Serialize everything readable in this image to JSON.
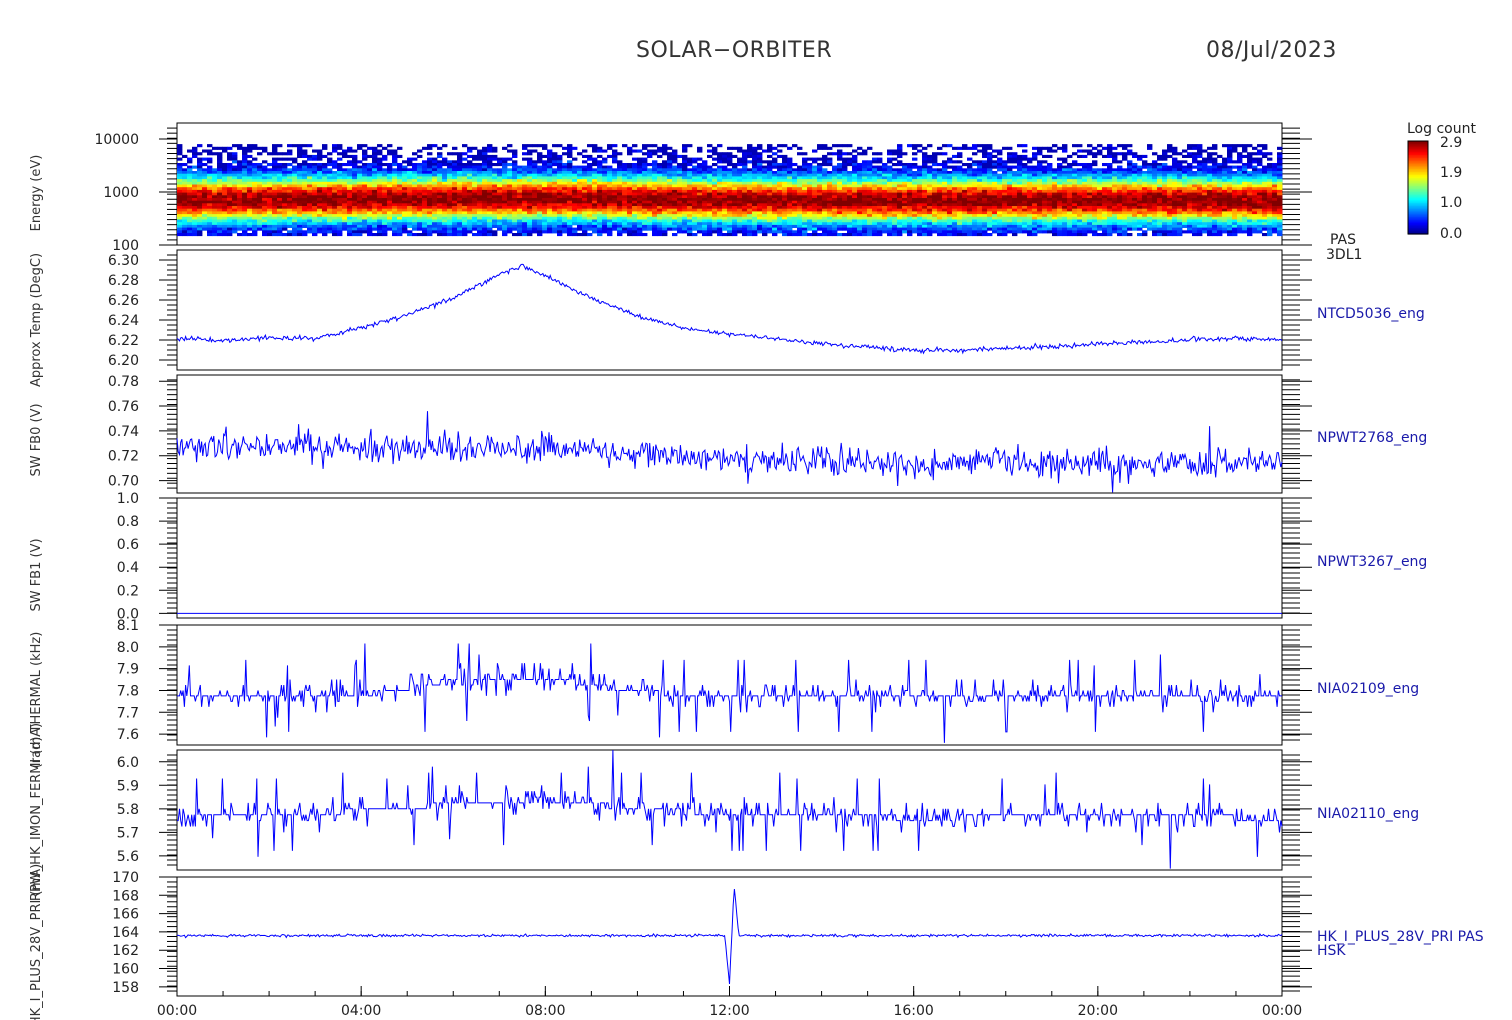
{
  "header": {
    "title": "SOLAR−ORBITER",
    "date": "08/Jul/2023"
  },
  "colors": {
    "trace": "#0000ff",
    "axis": "#000000",
    "label": "#1a1aaa"
  },
  "colorbar": {
    "title": "Log count",
    "ticks": [
      "2.9",
      "1.9",
      "1.0",
      "0.0"
    ],
    "range": [
      0.0,
      2.9
    ]
  },
  "y_axis_titles": [
    "Energy (eV)",
    "Approx Temp (DegC)",
    "SW FB0 (V)",
    "SW FB1 (V)",
    "(rad) THERMAL (kHz)",
    "RPW_HK_IMON_FERMI (mA)",
    "HK_I_PLUS_28V_PRI (mA)"
  ],
  "chart_data": [
    {
      "type": "heatmap",
      "name": "PAS",
      "side_labels": [
        "PAS",
        "3DL1"
      ],
      "x_ticks": [
        "00:00",
        "04:00",
        "08:00",
        "12:00",
        "16:00",
        "20:00",
        "00:00"
      ],
      "x_range_hours": [
        0,
        24
      ],
      "y_scale": "log",
      "y_range": [
        100,
        20000
      ],
      "y_ticks": [
        "10000",
        "1000",
        "100"
      ],
      "peak_energy_profile": [
        {
          "t": 0,
          "e": 700
        },
        {
          "t": 3,
          "e": 720
        },
        {
          "t": 8,
          "e": 760
        },
        {
          "t": 12,
          "e": 700
        },
        {
          "t": 16,
          "e": 680
        },
        {
          "t": 20,
          "e": 700
        },
        {
          "t": 24,
          "e": 680
        }
      ]
    },
    {
      "type": "line",
      "name": "NTCD5036_eng",
      "y_range": [
        6.19,
        6.31
      ],
      "y_ticks": [
        "6.30",
        "6.28",
        "6.26",
        "6.24",
        "6.22",
        "6.20"
      ],
      "x": [
        0,
        1,
        2,
        3,
        4,
        5,
        6,
        7,
        7.5,
        8,
        9,
        10,
        11,
        12,
        13,
        14,
        15,
        16,
        17,
        18,
        19,
        20,
        21,
        22,
        23,
        24
      ],
      "values": [
        6.222,
        6.22,
        6.222,
        6.222,
        6.232,
        6.245,
        6.262,
        6.285,
        6.294,
        6.284,
        6.262,
        6.244,
        6.232,
        6.226,
        6.222,
        6.216,
        6.213,
        6.21,
        6.21,
        6.212,
        6.213,
        6.216,
        6.218,
        6.22,
        6.222,
        6.22
      ]
    },
    {
      "type": "line",
      "name": "NPWT2768_eng",
      "y_range": [
        0.69,
        0.785
      ],
      "y_ticks": [
        "0.78",
        "0.76",
        "0.74",
        "0.72",
        "0.70"
      ],
      "x": [
        0,
        4,
        8,
        12,
        16,
        20,
        24
      ],
      "values": [
        0.728,
        0.726,
        0.726,
        0.718,
        0.714,
        0.714,
        0.714
      ]
    },
    {
      "type": "line",
      "name": "NPWT3267_eng",
      "y_range": [
        -0.04,
        1.0
      ],
      "y_ticks": [
        "1.0",
        "0.8",
        "0.6",
        "0.4",
        "0.2",
        "0.0"
      ],
      "x": [
        0,
        24
      ],
      "values": [
        0.0,
        0.0
      ]
    },
    {
      "type": "line",
      "name": "NIA02109_eng",
      "y_range": [
        7.55,
        8.1
      ],
      "y_ticks": [
        "8.1",
        "8.0",
        "7.9",
        "7.8",
        "7.7",
        "7.6"
      ],
      "x": [
        0,
        4,
        6,
        8,
        10,
        12,
        16,
        20,
        24
      ],
      "values": [
        7.78,
        7.78,
        7.84,
        7.86,
        7.79,
        7.78,
        7.78,
        7.78,
        7.78
      ]
    },
    {
      "type": "line",
      "name": "NIA02110_eng",
      "y_range": [
        5.54,
        6.05
      ],
      "y_ticks": [
        "6.0",
        "5.9",
        "5.8",
        "5.7",
        "5.6"
      ],
      "x": [
        0,
        4,
        6,
        8,
        10,
        12,
        16,
        20,
        24
      ],
      "values": [
        5.76,
        5.79,
        5.82,
        5.84,
        5.8,
        5.78,
        5.76,
        5.77,
        5.76
      ]
    },
    {
      "type": "line",
      "name": "HK_I_PLUS_28V_PRI PAS",
      "side_labels": [
        "HK_I_PLUS_28V_PRI PAS",
        "HSK"
      ],
      "y_range": [
        157,
        170
      ],
      "y_ticks": [
        "170",
        "168",
        "166",
        "164",
        "162",
        "160",
        "158"
      ],
      "x": [
        0,
        11.9,
        12.0,
        12.05,
        12.1,
        12.2,
        24
      ],
      "values": [
        163.6,
        163.6,
        158.2,
        163.6,
        169.2,
        163.6,
        163.6
      ]
    }
  ]
}
